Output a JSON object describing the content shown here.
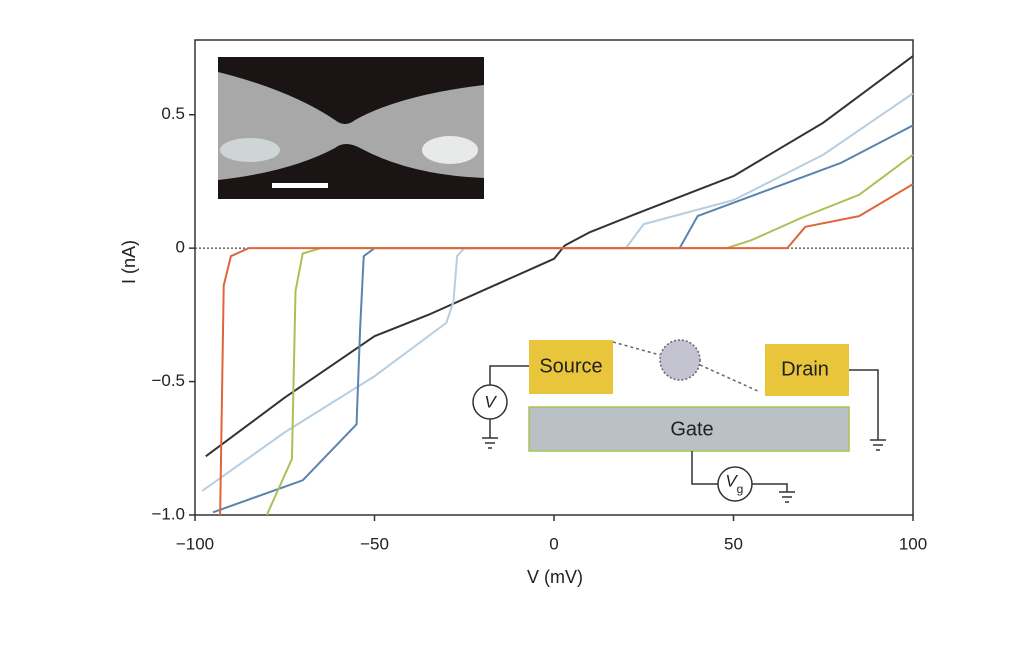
{
  "chart_data": {
    "type": "line",
    "xlabel": "V (mV)",
    "ylabel": "I (nA)",
    "xlim": [
      -100,
      100
    ],
    "ylim": [
      -1.0,
      0.78
    ],
    "xticks": [
      {
        "value": -100,
        "label": "−100"
      },
      {
        "value": -50,
        "label": "−50"
      },
      0,
      50,
      100
    ],
    "yticks": [
      {
        "value": -1.0,
        "label": "−1.0"
      },
      {
        "value": -0.5,
        "label": "−0.5"
      },
      0,
      0.5
    ],
    "zero_line": true,
    "series": [
      {
        "color": "#333333",
        "x": [
          -97,
          -75,
          -50,
          -35,
          -20,
          -5,
          0,
          3,
          10,
          25,
          50,
          75,
          100
        ],
        "values": [
          -0.78,
          -0.56,
          -0.33,
          -0.25,
          -0.16,
          -0.07,
          -0.04,
          0.01,
          0.06,
          0.14,
          0.27,
          0.47,
          0.72
        ]
      },
      {
        "color": "#b7cde0",
        "x": [
          -98,
          -75,
          -50,
          -30,
          -28,
          -27,
          -25,
          20,
          25,
          50,
          75,
          100
        ],
        "values": [
          -0.91,
          -0.69,
          -0.48,
          -0.28,
          -0.2,
          -0.03,
          0,
          0,
          0.09,
          0.18,
          0.35,
          0.58
        ]
      },
      {
        "color": "#5a84ae",
        "x": [
          -95,
          -70,
          -55,
          -54,
          -53,
          -50,
          35,
          40,
          60,
          80,
          100
        ],
        "values": [
          -0.99,
          -0.87,
          -0.66,
          -0.3,
          -0.03,
          0,
          0,
          0.12,
          0.22,
          0.32,
          0.46
        ]
      },
      {
        "color": "#a9c257",
        "x": [
          -80,
          -73,
          -72,
          -70,
          -65,
          48,
          55,
          70,
          85,
          100
        ],
        "values": [
          -1.0,
          -0.79,
          -0.16,
          -0.02,
          0,
          0,
          0.03,
          0.12,
          0.2,
          0.35
        ]
      },
      {
        "color": "#e0643c",
        "x": [
          -93,
          -92,
          -90,
          -85,
          65,
          70,
          85,
          100
        ],
        "values": [
          -1.0,
          -0.14,
          -0.03,
          0,
          0,
          0.08,
          0.12,
          0.24
        ]
      }
    ],
    "annotations": [
      "Source",
      "Drain",
      "Gate",
      "V",
      "V",
      "g"
    ]
  }
}
